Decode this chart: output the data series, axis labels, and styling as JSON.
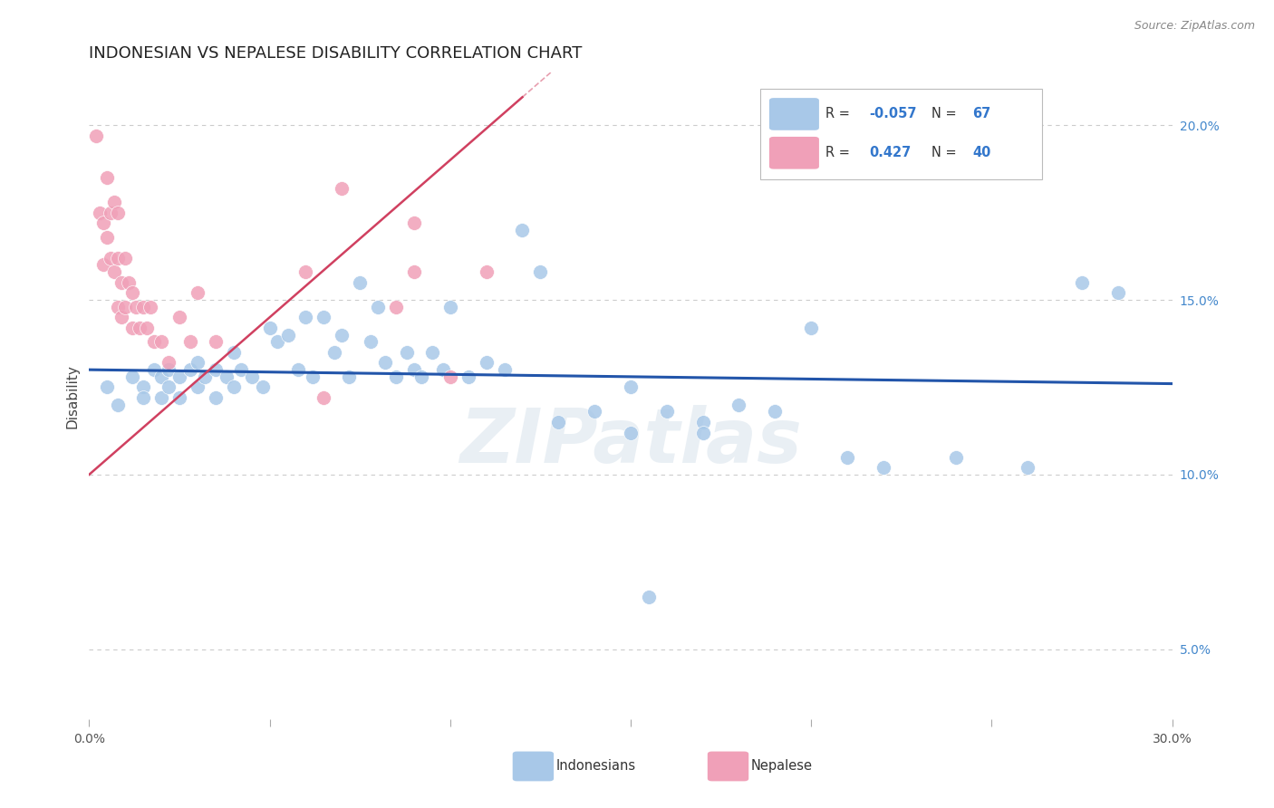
{
  "title": "INDONESIAN VS NEPALESE DISABILITY CORRELATION CHART",
  "source": "Source: ZipAtlas.com",
  "ylabel": "Disability",
  "xlim": [
    0.0,
    0.3
  ],
  "ylim": [
    0.03,
    0.215
  ],
  "xticks": [
    0.0,
    0.05,
    0.1,
    0.15,
    0.2,
    0.25,
    0.3
  ],
  "yticks": [
    0.05,
    0.1,
    0.15,
    0.2
  ],
  "yticklabels": [
    "5.0%",
    "10.0%",
    "15.0%",
    "20.0%"
  ],
  "r_indonesian": -0.057,
  "n_indonesian": 67,
  "r_nepalese": 0.427,
  "n_nepalese": 40,
  "blue_color": "#A8C8E8",
  "pink_color": "#F0A0B8",
  "blue_line_color": "#2255AA",
  "pink_line_color": "#D04060",
  "grid_color": "#CCCCCC",
  "background_color": "#FFFFFF",
  "indonesian_x": [
    0.005,
    0.008,
    0.012,
    0.015,
    0.015,
    0.018,
    0.02,
    0.02,
    0.022,
    0.022,
    0.025,
    0.025,
    0.028,
    0.03,
    0.03,
    0.032,
    0.035,
    0.035,
    0.038,
    0.04,
    0.04,
    0.042,
    0.045,
    0.048,
    0.05,
    0.052,
    0.055,
    0.058,
    0.06,
    0.062,
    0.065,
    0.068,
    0.07,
    0.072,
    0.075,
    0.078,
    0.08,
    0.082,
    0.085,
    0.088,
    0.09,
    0.092,
    0.095,
    0.098,
    0.1,
    0.105,
    0.11,
    0.115,
    0.12,
    0.125,
    0.13,
    0.14,
    0.15,
    0.155,
    0.16,
    0.17,
    0.18,
    0.19,
    0.2,
    0.21,
    0.22,
    0.24,
    0.26,
    0.275,
    0.285,
    0.15,
    0.17
  ],
  "indonesian_y": [
    0.125,
    0.12,
    0.128,
    0.125,
    0.122,
    0.13,
    0.128,
    0.122,
    0.13,
    0.125,
    0.128,
    0.122,
    0.13,
    0.132,
    0.125,
    0.128,
    0.13,
    0.122,
    0.128,
    0.135,
    0.125,
    0.13,
    0.128,
    0.125,
    0.142,
    0.138,
    0.14,
    0.13,
    0.145,
    0.128,
    0.145,
    0.135,
    0.14,
    0.128,
    0.155,
    0.138,
    0.148,
    0.132,
    0.128,
    0.135,
    0.13,
    0.128,
    0.135,
    0.13,
    0.148,
    0.128,
    0.132,
    0.13,
    0.17,
    0.158,
    0.115,
    0.118,
    0.125,
    0.065,
    0.118,
    0.115,
    0.12,
    0.118,
    0.142,
    0.105,
    0.102,
    0.105,
    0.102,
    0.155,
    0.152,
    0.112,
    0.112
  ],
  "nepalese_x": [
    0.002,
    0.003,
    0.004,
    0.004,
    0.005,
    0.005,
    0.006,
    0.006,
    0.007,
    0.007,
    0.008,
    0.008,
    0.008,
    0.009,
    0.009,
    0.01,
    0.01,
    0.011,
    0.012,
    0.012,
    0.013,
    0.014,
    0.015,
    0.016,
    0.017,
    0.018,
    0.02,
    0.022,
    0.025,
    0.028,
    0.03,
    0.035,
    0.06,
    0.065,
    0.07,
    0.085,
    0.09,
    0.1,
    0.11,
    0.09
  ],
  "nepalese_y": [
    0.197,
    0.175,
    0.172,
    0.16,
    0.185,
    0.168,
    0.175,
    0.162,
    0.178,
    0.158,
    0.175,
    0.162,
    0.148,
    0.155,
    0.145,
    0.162,
    0.148,
    0.155,
    0.152,
    0.142,
    0.148,
    0.142,
    0.148,
    0.142,
    0.148,
    0.138,
    0.138,
    0.132,
    0.145,
    0.138,
    0.152,
    0.138,
    0.158,
    0.122,
    0.182,
    0.148,
    0.158,
    0.128,
    0.158,
    0.172
  ],
  "indo_trend_x0": 0.0,
  "indo_trend_y0": 0.13,
  "indo_trend_x1": 0.3,
  "indo_trend_y1": 0.126,
  "nepal_trend_x0": 0.0,
  "nepal_trend_y0": 0.1,
  "nepal_trend_x1": 0.12,
  "nepal_trend_y1": 0.208,
  "watermark": "ZIPatlas",
  "title_fontsize": 13,
  "axis_label_fontsize": 11,
  "tick_fontsize": 10,
  "source_fontsize": 9
}
